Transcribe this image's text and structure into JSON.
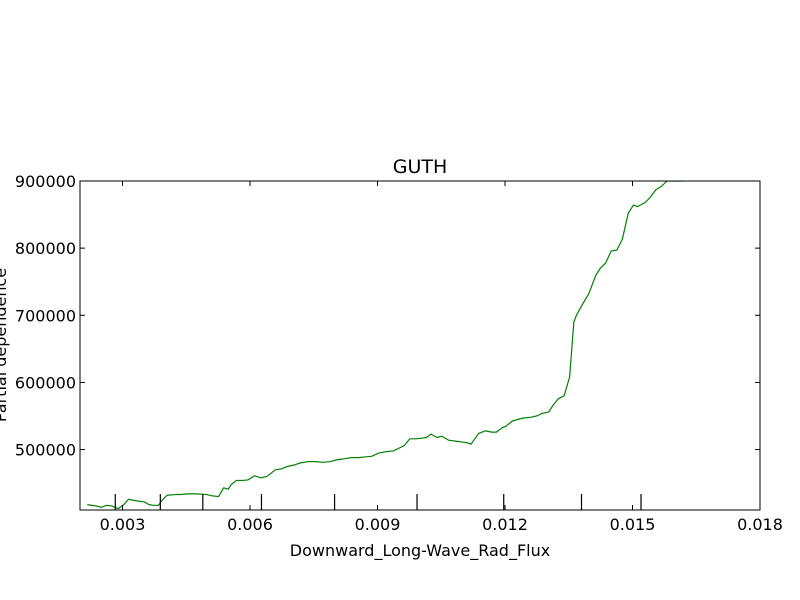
{
  "chart_data": {
    "type": "line",
    "title": "GUTH",
    "xlabel": "Downward_Long-Wave_Rad_Flux",
    "ylabel": "Partial dependence",
    "xlim": [
      0.002,
      0.018
    ],
    "ylim": [
      410000,
      900000
    ],
    "xticks": [
      0.003,
      0.006,
      0.009,
      0.012,
      0.015,
      0.018
    ],
    "xtick_labels": [
      "0.003",
      "0.006",
      "0.009",
      "0.012",
      "0.015",
      "0.018"
    ],
    "yticks": [
      500000,
      600000,
      700000,
      800000,
      900000
    ],
    "ytick_labels": [
      "500000",
      "600000",
      "700000",
      "800000",
      "900000"
    ],
    "rug_x": [
      0.00283,
      0.00389,
      0.00489,
      0.00627,
      0.00799,
      0.00993,
      0.01197,
      0.0138,
      0.0152
    ],
    "grid": false,
    "series": [
      {
        "color": "#008000",
        "x": [
          0.00217,
          0.00238,
          0.0025,
          0.00263,
          0.00275,
          0.0029,
          0.00303,
          0.00314,
          0.0033,
          0.00352,
          0.00362,
          0.00373,
          0.00385,
          0.00391,
          0.00405,
          0.00424,
          0.00436,
          0.00454,
          0.00474,
          0.00498,
          0.00512,
          0.00526,
          0.00538,
          0.00549,
          0.00556,
          0.00568,
          0.00584,
          0.00596,
          0.00611,
          0.00626,
          0.0064,
          0.0066,
          0.00672,
          0.00689,
          0.00704,
          0.00717,
          0.00736,
          0.00754,
          0.00772,
          0.00788,
          0.00806,
          0.00819,
          0.00838,
          0.00856,
          0.0087,
          0.00886,
          0.00904,
          0.00922,
          0.00937,
          0.0095,
          0.00963,
          0.00976,
          0.0099,
          0.01003,
          0.01015,
          0.01026,
          0.0104,
          0.01051,
          0.01067,
          0.0109,
          0.01102,
          0.01112,
          0.0112,
          0.01138,
          0.01154,
          0.01168,
          0.0118,
          0.01192,
          0.01203,
          0.01216,
          0.0123,
          0.01244,
          0.0126,
          0.01274,
          0.01288,
          0.01303,
          0.01313,
          0.01326,
          0.01339,
          0.01352,
          0.01362,
          0.01368,
          0.01382,
          0.01397,
          0.01414,
          0.01424,
          0.01437,
          0.0145,
          0.01463,
          0.01476,
          0.0149,
          0.01502,
          0.01512,
          0.0153,
          0.01542,
          0.01555,
          0.01568,
          0.01581,
          0.01597,
          0.0161,
          0.0162
        ],
        "y": [
          418000,
          416000,
          414000,
          417000,
          416000,
          412000,
          418000,
          426000,
          424000,
          422000,
          418000,
          417000,
          417000,
          423000,
          432000,
          433000,
          433000,
          434000,
          434000,
          433000,
          431000,
          430000,
          443000,
          441000,
          448000,
          454000,
          454000,
          455000,
          461000,
          458000,
          460000,
          470000,
          471000,
          475000,
          477000,
          480000,
          482000,
          482000,
          481000,
          482000,
          485000,
          486000,
          488000,
          488000,
          489000,
          490000,
          495000,
          497000,
          498000,
          502000,
          506000,
          516000,
          516000,
          517000,
          518000,
          523000,
          518000,
          520000,
          514000,
          512000,
          511000,
          510000,
          508000,
          524000,
          528000,
          526000,
          526000,
          532000,
          535000,
          542000,
          545000,
          547000,
          548000,
          550000,
          554000,
          556000,
          566000,
          576000,
          580000,
          608000,
          690000,
          700000,
          716000,
          732000,
          760000,
          770000,
          778000,
          796000,
          797000,
          813000,
          852000,
          864000,
          862000,
          868000,
          876000,
          887000,
          892000,
          900000,
          900000,
          900000,
          900000
        ]
      }
    ]
  }
}
